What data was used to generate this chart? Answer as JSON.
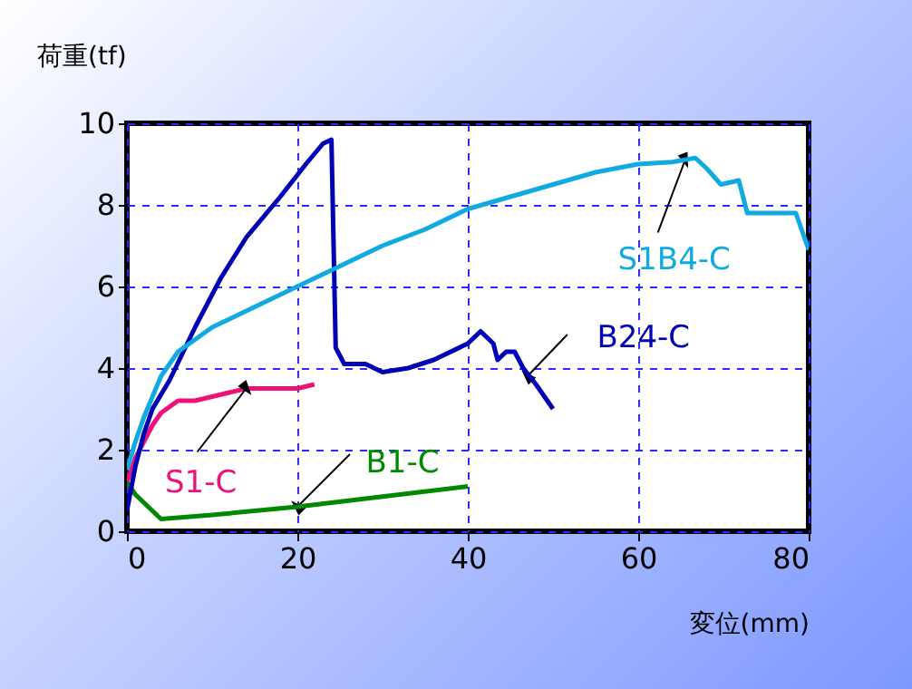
{
  "chart_data": {
    "type": "line",
    "xlabel": "変位(mm)",
    "ylabel": "荷重(tf)",
    "xlim": [
      0,
      80
    ],
    "ylim": [
      0,
      10
    ],
    "xticks": [
      0,
      20,
      40,
      60,
      80
    ],
    "yticks": [
      0,
      2,
      4,
      6,
      8,
      10
    ],
    "grid": true,
    "marker": "none",
    "line_style": "solid",
    "series": [
      {
        "color": "#ee1177",
        "x": [
          0,
          1,
          2,
          3,
          4,
          6,
          8,
          10,
          12,
          14,
          16,
          18,
          20,
          22
        ],
        "values": [
          1.2,
          1.8,
          2.2,
          2.6,
          2.9,
          3.2,
          3.2,
          3.3,
          3.4,
          3.5,
          3.5,
          3.5,
          3.5,
          3.6
        ]
      },
      {
        "color": "#008800",
        "x": [
          0,
          1,
          4,
          10,
          20,
          30,
          40
        ],
        "values": [
          1.2,
          0.9,
          0.3,
          0.4,
          0.6,
          0.85,
          1.1
        ]
      },
      {
        "color": "#0000b4",
        "x": [
          0,
          1,
          2,
          3,
          5,
          8,
          11,
          14,
          18,
          21,
          23,
          24,
          24.5,
          25.5,
          28,
          30,
          33,
          36,
          40,
          41.5,
          43,
          43.5,
          44.5,
          45.5,
          46.5,
          48,
          49,
          50
        ],
        "values": [
          0.5,
          1.6,
          2.4,
          3.0,
          3.7,
          5.0,
          6.2,
          7.2,
          8.2,
          9.0,
          9.5,
          9.6,
          4.5,
          4.1,
          4.1,
          3.9,
          4.0,
          4.2,
          4.6,
          4.9,
          4.6,
          4.2,
          4.4,
          4.4,
          4.0,
          3.6,
          3.3,
          3.0
        ]
      },
      {
        "color": "#11aae0",
        "x": [
          0,
          1,
          2,
          4,
          6,
          10,
          15,
          20,
          25,
          30,
          35,
          40,
          45,
          50,
          55,
          60,
          64,
          66.7,
          68,
          69.7,
          71.8,
          72.8,
          76,
          78.5,
          80
        ],
        "values": [
          1.5,
          2.2,
          2.8,
          3.8,
          4.4,
          5.0,
          5.5,
          6.0,
          6.5,
          7.0,
          7.4,
          7.9,
          8.2,
          8.5,
          8.8,
          9.0,
          9.05,
          9.15,
          8.9,
          8.5,
          8.6,
          7.8,
          7.8,
          7.8,
          6.9
        ]
      }
    ],
    "annotations": [
      {
        "text": "S1-C",
        "x": 14,
        "y": 3.5
      },
      {
        "text": "B1-C",
        "x": 20,
        "y": 0.6
      },
      {
        "text": "B24-C",
        "x": 47,
        "y": 3.8
      },
      {
        "text": "S1B4-C",
        "x": 65.5,
        "y": 9.1
      }
    ]
  }
}
